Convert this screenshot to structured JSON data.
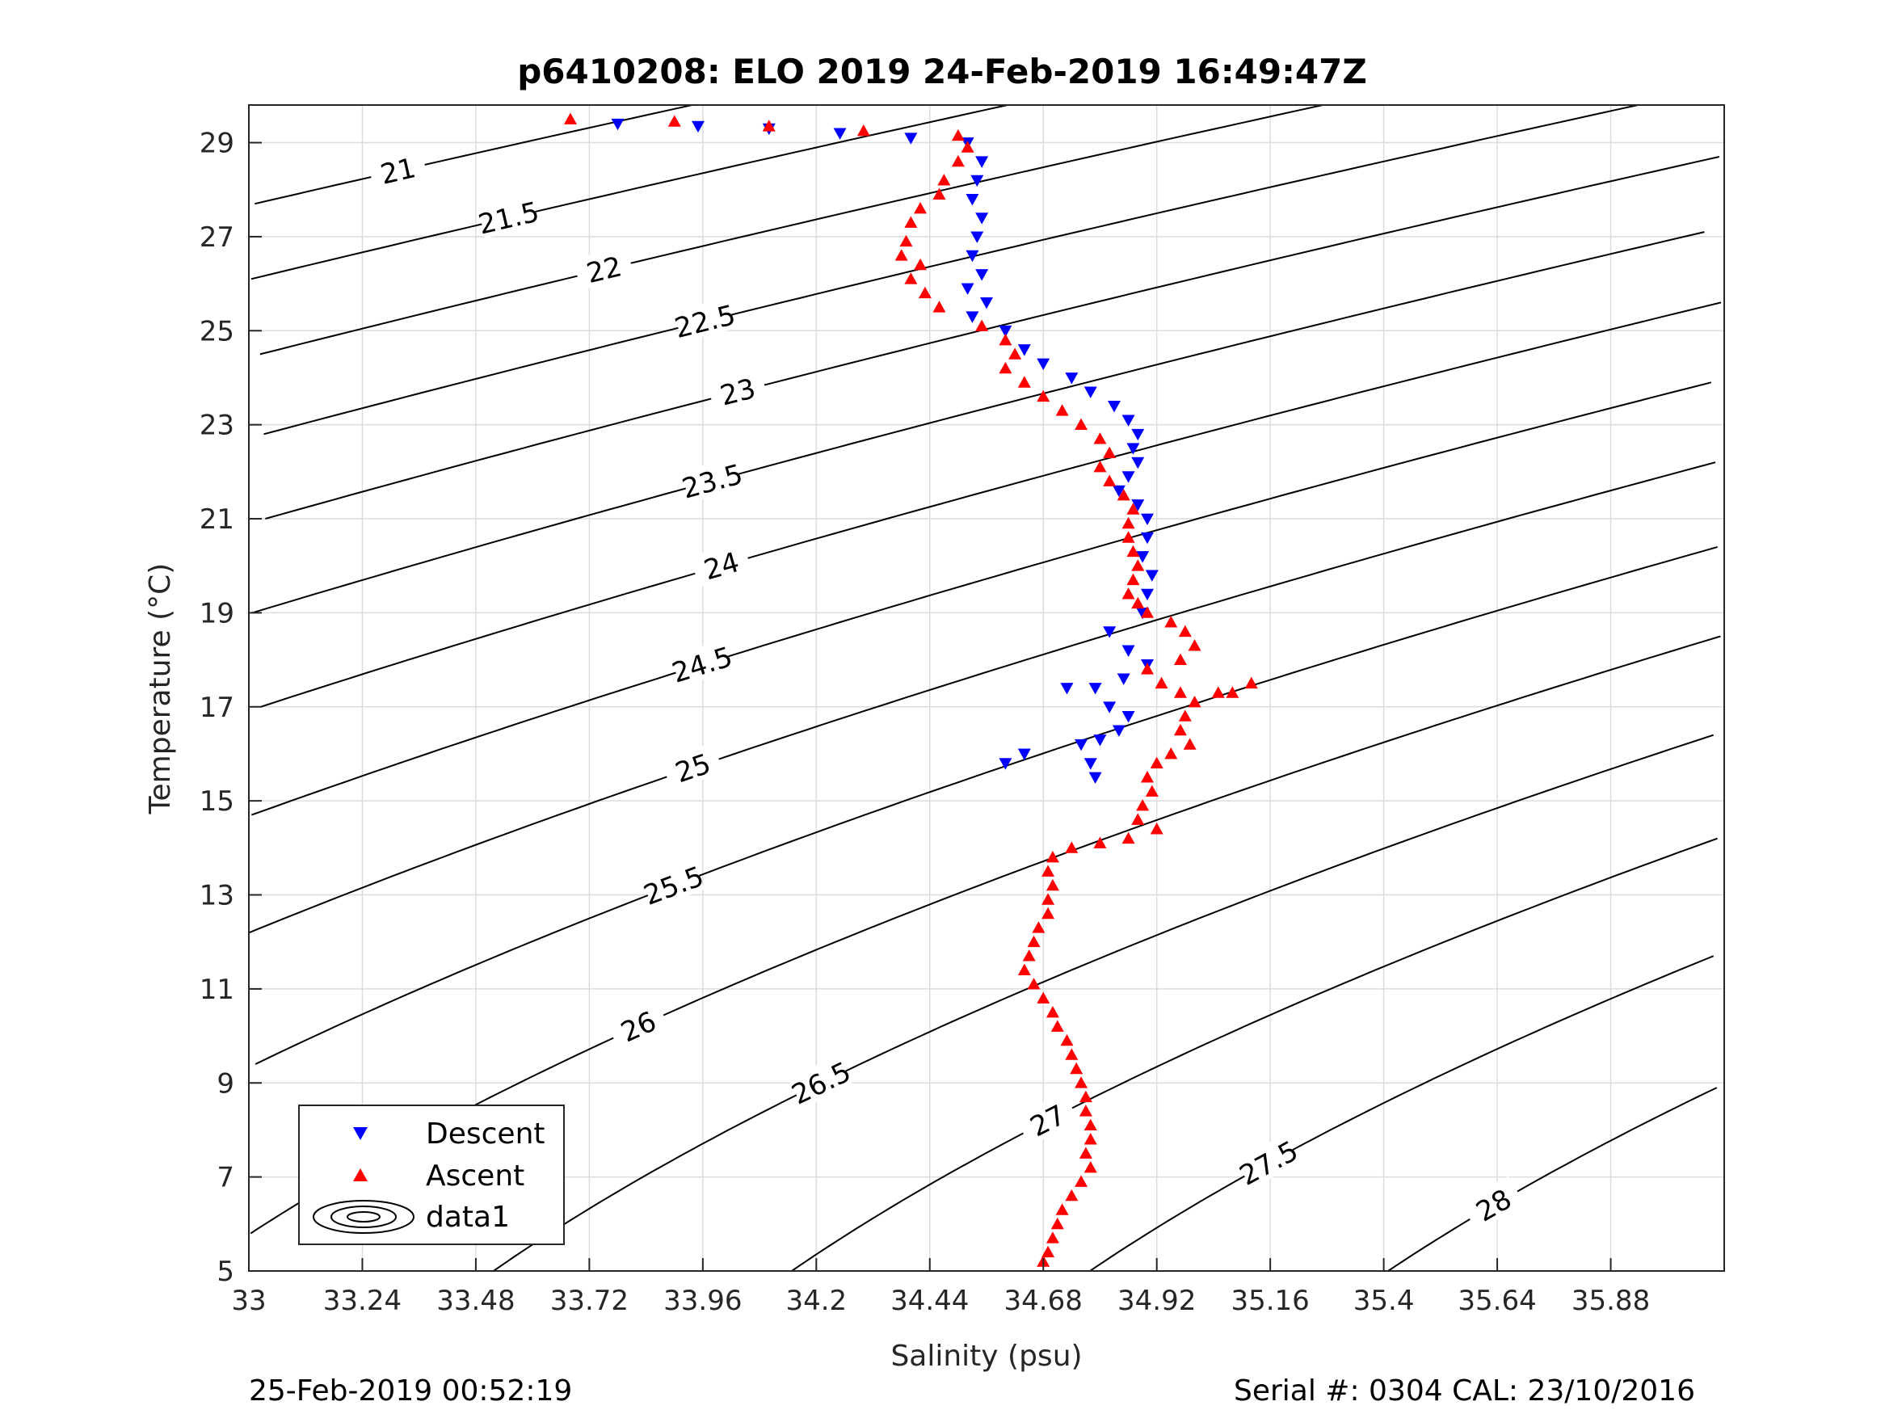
{
  "chart_data": {
    "type": "scatter",
    "title": "p6410208: ELO 2019 24-Feb-2019 16:49:47Z",
    "xlabel": "Salinity (psu)",
    "ylabel": "Temperature (°C)",
    "xlim": [
      33,
      36.12
    ],
    "ylim": [
      5,
      29.8
    ],
    "xticks": [
      "33",
      "33.24",
      "33.48",
      "33.72",
      "33.96",
      "34.2",
      "34.44",
      "34.68",
      "34.92",
      "35.16",
      "35.4",
      "35.64",
      "35.88"
    ],
    "yticks": [
      "5",
      "7",
      "9",
      "11",
      "13",
      "15",
      "17",
      "19",
      "21",
      "23",
      "25",
      "27",
      "29"
    ],
    "grid": true,
    "legend_position": "bottom-left",
    "legend": [
      "Descent",
      "Ascent",
      "data1"
    ],
    "colors": {
      "descent": "#0000ff",
      "ascent": "#ff0000",
      "contours": "#000000",
      "grid": "#dcdcdc"
    },
    "series": [
      {
        "name": "Descent",
        "marker": "triangle-down",
        "points": [
          [
            33.78,
            29.4
          ],
          [
            33.95,
            29.35
          ],
          [
            34.1,
            29.3
          ],
          [
            34.25,
            29.2
          ],
          [
            34.4,
            29.1
          ],
          [
            34.52,
            29.0
          ],
          [
            34.55,
            28.6
          ],
          [
            34.54,
            28.2
          ],
          [
            34.53,
            27.8
          ],
          [
            34.55,
            27.4
          ],
          [
            34.54,
            27.0
          ],
          [
            34.53,
            26.6
          ],
          [
            34.55,
            26.2
          ],
          [
            34.52,
            25.9
          ],
          [
            34.56,
            25.6
          ],
          [
            34.53,
            25.3
          ],
          [
            34.6,
            25.0
          ],
          [
            34.64,
            24.6
          ],
          [
            34.68,
            24.3
          ],
          [
            34.74,
            24.0
          ],
          [
            34.78,
            23.7
          ],
          [
            34.83,
            23.4
          ],
          [
            34.86,
            23.1
          ],
          [
            34.88,
            22.8
          ],
          [
            34.87,
            22.5
          ],
          [
            34.88,
            22.2
          ],
          [
            34.86,
            21.9
          ],
          [
            34.84,
            21.6
          ],
          [
            34.88,
            21.3
          ],
          [
            34.9,
            21.0
          ],
          [
            34.9,
            20.6
          ],
          [
            34.89,
            20.2
          ],
          [
            34.91,
            19.8
          ],
          [
            34.9,
            19.4
          ],
          [
            34.89,
            19.0
          ],
          [
            34.82,
            18.6
          ],
          [
            34.86,
            18.2
          ],
          [
            34.9,
            17.9
          ],
          [
            34.85,
            17.6
          ],
          [
            34.79,
            17.4
          ],
          [
            34.82,
            17.0
          ],
          [
            34.86,
            16.8
          ],
          [
            34.84,
            16.5
          ],
          [
            34.8,
            16.3
          ],
          [
            34.76,
            16.2
          ],
          [
            34.78,
            15.8
          ],
          [
            34.79,
            15.5
          ],
          [
            34.6,
            15.8
          ],
          [
            34.64,
            16.0
          ],
          [
            34.73,
            17.4
          ]
        ]
      },
      {
        "name": "Ascent",
        "marker": "triangle-up",
        "points": [
          [
            33.68,
            29.5
          ],
          [
            33.9,
            29.45
          ],
          [
            34.1,
            29.35
          ],
          [
            34.3,
            29.25
          ],
          [
            34.5,
            29.15
          ],
          [
            34.52,
            28.9
          ],
          [
            34.5,
            28.6
          ],
          [
            34.47,
            28.2
          ],
          [
            34.46,
            27.9
          ],
          [
            34.42,
            27.6
          ],
          [
            34.4,
            27.3
          ],
          [
            34.39,
            26.9
          ],
          [
            34.38,
            26.6
          ],
          [
            34.42,
            26.4
          ],
          [
            34.4,
            26.1
          ],
          [
            34.43,
            25.8
          ],
          [
            34.46,
            25.5
          ],
          [
            34.55,
            25.1
          ],
          [
            34.6,
            24.8
          ],
          [
            34.62,
            24.5
          ],
          [
            34.6,
            24.2
          ],
          [
            34.64,
            23.9
          ],
          [
            34.68,
            23.6
          ],
          [
            34.72,
            23.3
          ],
          [
            34.76,
            23.0
          ],
          [
            34.8,
            22.7
          ],
          [
            34.82,
            22.4
          ],
          [
            34.8,
            22.1
          ],
          [
            34.82,
            21.8
          ],
          [
            34.85,
            21.5
          ],
          [
            34.87,
            21.2
          ],
          [
            34.86,
            20.9
          ],
          [
            34.86,
            20.6
          ],
          [
            34.87,
            20.3
          ],
          [
            34.88,
            20.0
          ],
          [
            34.87,
            19.7
          ],
          [
            34.86,
            19.4
          ],
          [
            34.88,
            19.2
          ],
          [
            34.9,
            19.0
          ],
          [
            34.95,
            18.8
          ],
          [
            34.98,
            18.6
          ],
          [
            35.0,
            18.3
          ],
          [
            34.97,
            18.0
          ],
          [
            34.9,
            17.8
          ],
          [
            34.93,
            17.5
          ],
          [
            34.97,
            17.3
          ],
          [
            35.05,
            17.3
          ],
          [
            35.12,
            17.5
          ],
          [
            35.08,
            17.3
          ],
          [
            35.0,
            17.1
          ],
          [
            34.98,
            16.8
          ],
          [
            34.97,
            16.5
          ],
          [
            34.99,
            16.2
          ],
          [
            34.95,
            16.0
          ],
          [
            34.92,
            15.8
          ],
          [
            34.9,
            15.5
          ],
          [
            34.91,
            15.2
          ],
          [
            34.89,
            14.9
          ],
          [
            34.88,
            14.6
          ],
          [
            34.92,
            14.4
          ],
          [
            34.86,
            14.2
          ],
          [
            34.8,
            14.1
          ],
          [
            34.74,
            14.0
          ],
          [
            34.7,
            13.8
          ],
          [
            34.69,
            13.5
          ],
          [
            34.7,
            13.2
          ],
          [
            34.69,
            12.9
          ],
          [
            34.69,
            12.6
          ],
          [
            34.67,
            12.3
          ],
          [
            34.66,
            12.0
          ],
          [
            34.65,
            11.7
          ],
          [
            34.64,
            11.4
          ],
          [
            34.66,
            11.1
          ],
          [
            34.68,
            10.8
          ],
          [
            34.7,
            10.5
          ],
          [
            34.71,
            10.2
          ],
          [
            34.73,
            9.9
          ],
          [
            34.74,
            9.6
          ],
          [
            34.75,
            9.3
          ],
          [
            34.76,
            9.0
          ],
          [
            34.77,
            8.7
          ],
          [
            34.77,
            8.4
          ],
          [
            34.78,
            8.1
          ],
          [
            34.78,
            7.8
          ],
          [
            34.77,
            7.5
          ],
          [
            34.78,
            7.2
          ],
          [
            34.76,
            6.9
          ],
          [
            34.74,
            6.6
          ],
          [
            34.72,
            6.3
          ],
          [
            34.71,
            6.0
          ],
          [
            34.7,
            5.7
          ],
          [
            34.69,
            5.4
          ],
          [
            34.68,
            5.2
          ]
        ]
      }
    ],
    "contour_labels": [
      "21",
      "21.5",
      "22",
      "22.5",
      "23",
      "23.5",
      "24",
      "24.5",
      "25",
      "25.5",
      "26",
      "26.5",
      "27",
      "27.5",
      "28"
    ]
  },
  "footer": {
    "timestamp": "25-Feb-2019 00:52:19",
    "serial": "Serial #: 0304  CAL: 23/10/2016"
  }
}
